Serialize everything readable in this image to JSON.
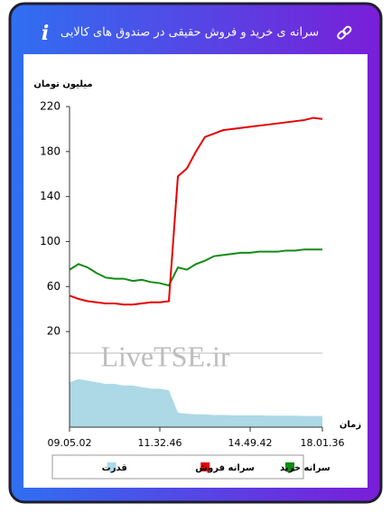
{
  "header": {
    "info_icon": "i"
  },
  "chart_data": {
    "type": "line",
    "title": "سرانه ی خرید و فروش حقیقی در صندوق های کالایی",
    "y_label": "میلیون تومان",
    "x_label": "زمان",
    "watermark": "LiveTSE.ir",
    "categories": [
      "09.05.02",
      null,
      null,
      null,
      null,
      null,
      null,
      null,
      null,
      null,
      "11.32.46",
      null,
      null,
      null,
      null,
      null,
      null,
      null,
      null,
      null,
      "14.49.42",
      null,
      null,
      null,
      null,
      null,
      null,
      null,
      "18.01.36"
    ],
    "ylim": [
      -65,
      220
    ],
    "yticks": [
      20,
      60,
      100,
      140,
      180,
      220
    ],
    "y2lim": [
      0,
      10
    ],
    "legend": "bottom",
    "series": [
      {
        "name": "سرانه خرید",
        "color": "#138a13",
        "type": "line",
        "values": [
          75,
          80,
          77,
          72,
          68,
          67,
          67,
          65,
          66,
          64,
          63,
          61,
          77,
          75,
          80,
          83,
          87,
          88,
          89,
          90,
          90,
          91,
          91,
          91,
          92,
          92,
          93,
          93,
          93
        ]
      },
      {
        "name": "سرانه فروش",
        "color": "#e60000",
        "type": "line",
        "values": [
          52,
          49,
          47,
          46,
          45,
          45,
          44,
          44,
          45,
          46,
          46,
          47,
          158,
          165,
          180,
          193,
          196,
          199,
          200,
          201,
          202,
          203,
          204,
          205,
          206,
          207,
          208,
          210,
          209
        ]
      },
      {
        "name": "قدرت",
        "color": "#add8e6",
        "type": "area",
        "axis": "y2",
        "values": [
          1.4,
          1.5,
          1.45,
          1.4,
          1.35,
          1.35,
          1.3,
          1.3,
          1.25,
          1.2,
          1.2,
          1.15,
          0.45,
          0.42,
          0.4,
          0.4,
          0.38,
          0.38,
          0.37,
          0.37,
          0.37,
          0.37,
          0.36,
          0.36,
          0.36,
          0.36,
          0.35,
          0.35,
          0.35
        ]
      }
    ]
  }
}
